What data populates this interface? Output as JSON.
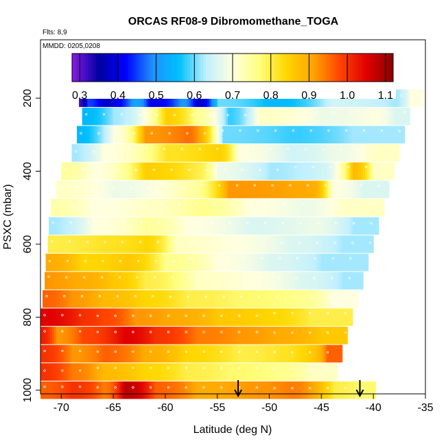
{
  "figure": {
    "title": "ORCAS RF08-9 Dibromomethane_TOGA",
    "flights_label": "Flts: 8,9",
    "dates_label": "MMDD: 0205,0208"
  },
  "chart_data": {
    "type": "heatmap",
    "title": "ORCAS RF08-9 Dibromomethane_TOGA",
    "xlabel": "Latitude (deg N)",
    "ylabel": "PSXC (mbar)",
    "xlim": [
      -72,
      -35
    ],
    "ylim": [
      1010,
      40
    ],
    "y_reversed": true,
    "xticks": [
      -70,
      -65,
      -60,
      -55,
      -50,
      -45,
      -40,
      -35
    ],
    "yticks": [
      200,
      400,
      600,
      800,
      1000
    ],
    "grid": false,
    "colorbar": {
      "min": 0.28,
      "max": 1.12,
      "ticks": [
        0.3,
        0.4,
        0.5,
        0.6,
        0.7,
        0.8,
        0.9,
        1.0,
        1.1
      ],
      "tick_labels": [
        "0.3",
        "0.4",
        "0.5",
        "0.6",
        "0.7",
        "0.8",
        "0.9",
        "1.0",
        "1.1"
      ],
      "colors": [
        "#8a1ae6",
        "#0000a0",
        "#0000ff",
        "#1e90ff",
        "#00bfff",
        "#bfefff",
        "#ffffdf",
        "#ffff80",
        "#ffd700",
        "#ffa500",
        "#ff4500",
        "#e00000",
        "#8b0000"
      ],
      "placement": "top-inside"
    },
    "bands": [
      {
        "p": 200,
        "x0": -68.3,
        "x1": -35.2,
        "segments": [
          [
            -68.3,
            0.32
          ],
          [
            -67.5,
            0.45
          ],
          [
            -66.0,
            0.38
          ],
          [
            -63.0,
            0.52
          ],
          [
            -61.5,
            0.4
          ],
          [
            -58.5,
            0.5
          ],
          [
            -57.0,
            0.38
          ],
          [
            -55.0,
            0.6
          ],
          [
            -50.0,
            0.55
          ],
          [
            -44.0,
            0.65
          ],
          [
            -38.0,
            0.62
          ],
          [
            -36.5,
            0.7
          ]
        ]
      },
      {
        "p": 250,
        "x0": -68.0,
        "x1": -36.5,
        "segments": [
          [
            -68.0,
            0.55
          ],
          [
            -65.0,
            0.62
          ],
          [
            -60.0,
            0.85
          ],
          [
            -57.0,
            0.75
          ],
          [
            -54.0,
            0.58
          ],
          [
            -51.0,
            0.72
          ],
          [
            -45.0,
            0.68
          ],
          [
            -40.0,
            0.7
          ],
          [
            -38.0,
            0.66
          ]
        ]
      },
      {
        "p": 300,
        "x0": -68.5,
        "x1": -37.0,
        "segments": [
          [
            -68.5,
            0.55
          ],
          [
            -65.0,
            0.7
          ],
          [
            -62.0,
            0.92
          ],
          [
            -58.0,
            0.95
          ],
          [
            -54.5,
            0.6
          ],
          [
            -48.0,
            0.58
          ],
          [
            -42.0,
            0.62
          ]
        ]
      },
      {
        "p": 350,
        "x0": -69.0,
        "x1": -37.5,
        "segments": [
          [
            -69.0,
            0.62
          ],
          [
            -66.0,
            0.7
          ],
          [
            -60.0,
            0.82
          ],
          [
            -55.0,
            0.85
          ],
          [
            -53.0,
            0.7
          ],
          [
            -48.0,
            0.65
          ],
          [
            -44.0,
            0.68
          ],
          [
            -40.0,
            0.72
          ]
        ]
      },
      {
        "p": 400,
        "x0": -70.0,
        "x1": -38.0,
        "segments": [
          [
            -70.0,
            0.75
          ],
          [
            -67.0,
            0.7
          ],
          [
            -62.0,
            0.85
          ],
          [
            -57.0,
            0.8
          ],
          [
            -55.0,
            0.68
          ],
          [
            -50.0,
            0.62
          ],
          [
            -45.0,
            0.65
          ],
          [
            -42.0,
            0.88
          ],
          [
            -40.0,
            0.72
          ]
        ]
      },
      {
        "p": 450,
        "x0": -70.5,
        "x1": -38.5,
        "segments": [
          [
            -70.5,
            0.72
          ],
          [
            -65.0,
            0.68
          ],
          [
            -58.0,
            0.74
          ],
          [
            -54.0,
            0.92
          ],
          [
            -46.0,
            0.9
          ],
          [
            -44.0,
            0.7
          ],
          [
            -41.0,
            0.66
          ]
        ]
      },
      {
        "p": 500,
        "x0": -71.0,
        "x1": -39.0,
        "segments": [
          [
            -71.0,
            0.74
          ],
          [
            -67.0,
            0.7
          ],
          [
            -62.0,
            0.72
          ],
          [
            -57.0,
            0.76
          ],
          [
            -52.0,
            0.7
          ],
          [
            -47.0,
            0.68
          ],
          [
            -43.0,
            0.72
          ]
        ]
      },
      {
        "p": 550,
        "x0": -71.2,
        "x1": -39.5,
        "segments": [
          [
            -71.2,
            0.62
          ],
          [
            -67.0,
            0.7
          ],
          [
            -62.0,
            0.75
          ],
          [
            -58.0,
            0.7
          ],
          [
            -52.0,
            0.66
          ],
          [
            -46.0,
            0.68
          ],
          [
            -42.0,
            0.62
          ]
        ]
      },
      {
        "p": 600,
        "x0": -71.3,
        "x1": -40.0,
        "segments": [
          [
            -71.3,
            0.8
          ],
          [
            -66.0,
            0.82
          ],
          [
            -62.0,
            0.84
          ],
          [
            -59.0,
            0.72
          ],
          [
            -54.0,
            0.7
          ],
          [
            -48.0,
            0.66
          ],
          [
            -43.0,
            0.62
          ]
        ]
      },
      {
        "p": 650,
        "x0": -71.5,
        "x1": -40.5,
        "segments": [
          [
            -71.5,
            0.9
          ],
          [
            -68.0,
            0.84
          ],
          [
            -64.0,
            0.86
          ],
          [
            -60.0,
            0.76
          ],
          [
            -55.0,
            0.7
          ],
          [
            -50.0,
            0.66
          ],
          [
            -45.0,
            0.62
          ]
        ]
      },
      {
        "p": 700,
        "x0": -71.6,
        "x1": -41.0,
        "segments": [
          [
            -71.6,
            0.92
          ],
          [
            -68.5,
            0.9
          ],
          [
            -65.0,
            0.86
          ],
          [
            -62.0,
            0.8
          ],
          [
            -57.0,
            0.72
          ],
          [
            -52.0,
            0.7
          ],
          [
            -47.0,
            0.66
          ],
          [
            -43.0,
            0.62
          ]
        ]
      },
      {
        "p": 750,
        "x0": -71.8,
        "x1": -41.5,
        "segments": [
          [
            -71.8,
            0.96
          ],
          [
            -69.0,
            0.92
          ],
          [
            -66.0,
            0.88
          ],
          [
            -62.0,
            0.84
          ],
          [
            -58.0,
            0.8
          ],
          [
            -53.0,
            0.78
          ],
          [
            -47.0,
            0.76
          ],
          [
            -44.0,
            0.7
          ]
        ]
      },
      {
        "p": 800,
        "x0": -72.0,
        "x1": -42.0,
        "segments": [
          [
            -72.0,
            1.05
          ],
          [
            -68.0,
            1.0
          ],
          [
            -66.0,
            0.98
          ],
          [
            -63.0,
            0.92
          ],
          [
            -59.0,
            0.9
          ],
          [
            -55.0,
            0.86
          ],
          [
            -50.0,
            0.84
          ],
          [
            -46.0,
            0.8
          ]
        ]
      },
      {
        "p": 850,
        "x0": -72.0,
        "x1": -42.5,
        "segments": [
          [
            -72.0,
            1.02
          ],
          [
            -70.5,
            0.92
          ],
          [
            -68.0,
            0.98
          ],
          [
            -64.0,
            1.05
          ],
          [
            -61.0,
            1.0
          ],
          [
            -57.0,
            0.94
          ],
          [
            -53.0,
            0.92
          ],
          [
            -49.0,
            0.9
          ],
          [
            -45.0,
            0.86
          ]
        ]
      },
      {
        "p": 900,
        "x0": -72.0,
        "x1": -43.0,
        "segments": [
          [
            -72.0,
            1.0
          ],
          [
            -69.0,
            0.92
          ],
          [
            -66.0,
            0.96
          ],
          [
            -62.0,
            0.9
          ],
          [
            -58.0,
            0.84
          ],
          [
            -53.0,
            0.8
          ],
          [
            -49.0,
            0.82
          ],
          [
            -46.0,
            0.86
          ],
          [
            -44.5,
            0.96
          ]
        ]
      },
      {
        "p": 950,
        "x0": -72.0,
        "x1": -43.5,
        "segments": [
          [
            -72.0,
            1.0
          ],
          [
            -69.0,
            0.94
          ],
          [
            -66.0,
            0.88
          ],
          [
            -62.0,
            0.84
          ],
          [
            -58.0,
            0.8
          ],
          [
            -54.0,
            0.78
          ],
          [
            -49.0,
            0.76
          ],
          [
            -46.0,
            0.72
          ]
        ]
      },
      {
        "p": 1000,
        "x0": -72.0,
        "x1": -39.8,
        "segments": [
          [
            -72.0,
            0.96
          ],
          [
            -69.0,
            1.0
          ],
          [
            -66.0,
            0.94
          ],
          [
            -64.0,
            1.08
          ],
          [
            -61.0,
            0.96
          ],
          [
            -57.0,
            0.9
          ],
          [
            -52.0,
            0.92
          ],
          [
            -48.0,
            0.94
          ],
          [
            -43.8,
            0.8
          ],
          [
            -41.5,
            0.78
          ]
        ]
      }
    ],
    "arrows": [
      {
        "x": -53.0,
        "label": ""
      },
      {
        "x": -41.3,
        "label": ""
      }
    ]
  }
}
